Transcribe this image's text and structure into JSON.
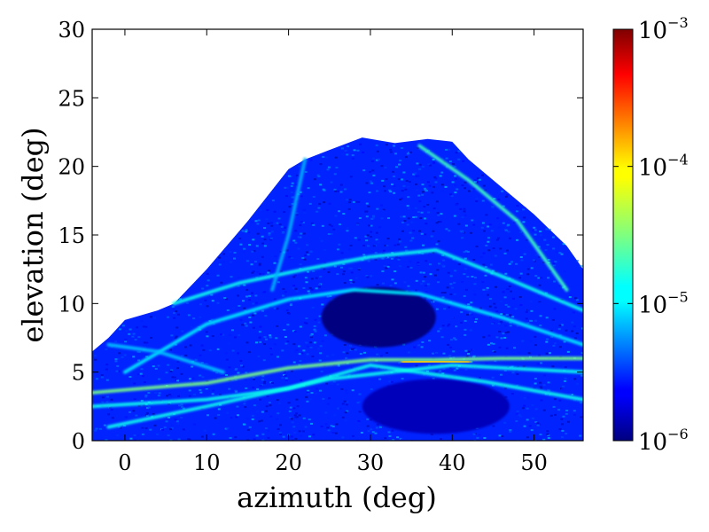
{
  "chart_data": {
    "type": "heatmap",
    "title": "",
    "xlabel": "azimuth (deg)",
    "ylabel": "elevation (deg)",
    "xlim": [
      -4,
      56
    ],
    "ylim": [
      0,
      30
    ],
    "x_ticks": [
      0,
      10,
      20,
      30,
      40,
      50
    ],
    "y_ticks": [
      0,
      5,
      10,
      15,
      20,
      25,
      30
    ],
    "x_tick_labels": [
      "0",
      "10",
      "20",
      "30",
      "40",
      "50"
    ],
    "y_tick_labels": [
      "0",
      "5",
      "10",
      "15",
      "20",
      "25",
      "30"
    ],
    "colormap": "jet",
    "colorbar": {
      "scale": "log",
      "range": [
        1e-06,
        0.001
      ],
      "ticks": [
        {
          "base": "10",
          "exp": "−6",
          "value": 1e-06
        },
        {
          "base": "10",
          "exp": "−5",
          "value": 1e-05
        },
        {
          "base": "10",
          "exp": "−4",
          "value": 0.0001
        },
        {
          "base": "10",
          "exp": "−3",
          "value": 0.001
        }
      ]
    },
    "coverage_outline": {
      "description_units": "azimuth, elevation (deg)",
      "points": [
        [
          -4,
          0
        ],
        [
          -4,
          6.5
        ],
        [
          -2,
          7.5
        ],
        [
          0,
          8.8
        ],
        [
          4,
          9.5
        ],
        [
          6,
          10
        ],
        [
          10,
          12.5
        ],
        [
          15,
          16
        ],
        [
          20,
          19.8
        ],
        [
          22,
          20.5
        ],
        [
          25,
          21.2
        ],
        [
          29,
          22.1
        ],
        [
          33,
          21.7
        ],
        [
          37,
          22
        ],
        [
          40,
          21.8
        ],
        [
          42,
          20.5
        ],
        [
          46,
          18.5
        ],
        [
          50,
          16.5
        ],
        [
          54,
          14.2
        ],
        [
          56,
          12.5
        ],
        [
          56,
          0
        ]
      ]
    },
    "bands": [
      {
        "name": "main-high-band",
        "value": 3e-05,
        "path": [
          [
            -4,
            3.5
          ],
          [
            10,
            4.2
          ],
          [
            20,
            5.3
          ],
          [
            30,
            5.9
          ],
          [
            38,
            5.9
          ],
          [
            46,
            6.0
          ],
          [
            56,
            6.0
          ]
        ]
      },
      {
        "name": "peak-band",
        "value": 0.0001,
        "path": [
          [
            34,
            5.7
          ],
          [
            38,
            5.8
          ],
          [
            42,
            5.7
          ]
        ]
      },
      {
        "name": "upper-arc",
        "value": 1.5e-05,
        "path": [
          [
            6,
            10
          ],
          [
            14,
            11.5
          ],
          [
            22,
            12.5
          ],
          [
            30,
            13.4
          ],
          [
            38,
            13.9
          ],
          [
            46,
            12
          ],
          [
            56,
            9.5
          ]
        ]
      },
      {
        "name": "mid-arc",
        "value": 1.2e-05,
        "path": [
          [
            0,
            5
          ],
          [
            10,
            8.5
          ],
          [
            20,
            10.3
          ],
          [
            28,
            11
          ],
          [
            36,
            10.7
          ],
          [
            46,
            9
          ],
          [
            56,
            7
          ]
        ]
      },
      {
        "name": "lower-crossing-1",
        "value": 1.5e-05,
        "path": [
          [
            -4,
            2.5
          ],
          [
            10,
            3
          ],
          [
            20,
            3.8
          ],
          [
            30,
            5.5
          ],
          [
            44,
            4.3
          ],
          [
            56,
            3
          ]
        ]
      },
      {
        "name": "lower-crossing-2",
        "value": 1.5e-05,
        "path": [
          [
            -2,
            1
          ],
          [
            10,
            2.5
          ],
          [
            25,
            4.5
          ],
          [
            40,
            5.5
          ],
          [
            56,
            5
          ]
        ]
      },
      {
        "name": "right-ridge",
        "value": 2e-05,
        "path": [
          [
            36,
            21.5
          ],
          [
            42,
            19
          ],
          [
            48,
            16
          ],
          [
            54,
            11
          ]
        ]
      },
      {
        "name": "left-ridge",
        "value": 8e-06,
        "path": [
          [
            22,
            20.5
          ],
          [
            20,
            15
          ],
          [
            18,
            11
          ]
        ]
      },
      {
        "name": "left-ramp",
        "value": 9e-06,
        "path": [
          [
            -2,
            7
          ],
          [
            4,
            6.5
          ],
          [
            12,
            5
          ]
        ]
      }
    ],
    "dark_regions": [
      {
        "name": "central-lens",
        "value": 1e-06,
        "center": [
          31,
          9
        ],
        "radii": [
          7,
          2.2
        ]
      },
      {
        "name": "lower-wedge",
        "value": 1.5e-06,
        "center": [
          38,
          2.5
        ],
        "radii": [
          9,
          2
        ]
      }
    ]
  }
}
